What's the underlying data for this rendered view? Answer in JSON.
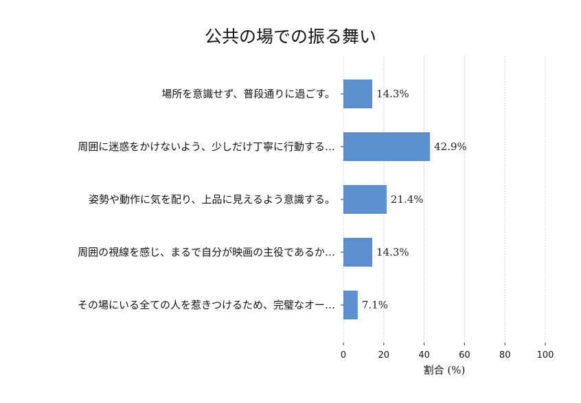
{
  "chart_data": {
    "type": "bar",
    "orientation": "horizontal",
    "title": "公共の場での振る舞い",
    "xlabel": "割合 (%)",
    "ylabel": "",
    "xlim": [
      0,
      100
    ],
    "xticks": [
      "0",
      "20",
      "40",
      "60",
      "80",
      "100"
    ],
    "grid": true,
    "categories": [
      "場所を意識せず、普段通りに過ごす。",
      "周囲に迷惑をかけないよう、少しだけ丁寧に行動する…",
      "姿勢や動作に気を配り、上品に見えるよう意識する。",
      "周囲の視線を感じ、まるで自分が映画の主役であるか…",
      "その場にいる全ての人を惹きつけるため、完璧なオー…"
    ],
    "values": [
      14.3,
      42.9,
      21.4,
      14.3,
      7.1
    ],
    "value_labels": [
      "14.3%",
      "42.9%",
      "21.4%",
      "14.3%",
      "7.1%"
    ],
    "bar_color": "#5b8fd0"
  }
}
